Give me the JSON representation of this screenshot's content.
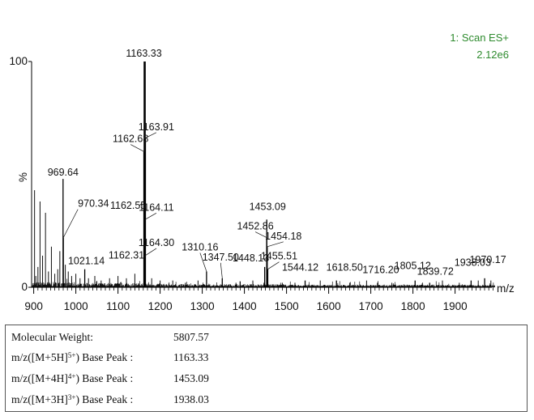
{
  "scan_info": {
    "line1": "1: Scan ES+",
    "line2": "2.12e6"
  },
  "chart_data": {
    "type": "bar",
    "x_unit": "m/z",
    "y_unit": "%",
    "xlim": [
      895,
      2000
    ],
    "ylim": [
      0,
      100
    ],
    "x_ticks": [
      900,
      1000,
      1100,
      1200,
      1300,
      1400,
      1500,
      1600,
      1700,
      1800,
      1900
    ],
    "y_ticks": [
      0,
      100
    ],
    "labeled_peaks": [
      {
        "mz": 969.64,
        "label": "969.64",
        "intensity": 48
      },
      {
        "mz": 970.34,
        "label": "970.34",
        "intensity": 22
      },
      {
        "mz": 1021.14,
        "label": "1021.14",
        "intensity": 8
      },
      {
        "mz": 1162.31,
        "label": "1162.31",
        "intensity": 12
      },
      {
        "mz": 1162.55,
        "label": "1162.55",
        "intensity": 34
      },
      {
        "mz": 1162.68,
        "label": "1162.68",
        "intensity": 60
      },
      {
        "mz": 1163.33,
        "label": "1163.33",
        "intensity": 100
      },
      {
        "mz": 1163.91,
        "label": "1163.91",
        "intensity": 66
      },
      {
        "mz": 1164.11,
        "label": "1164.11",
        "intensity": 30
      },
      {
        "mz": 1164.3,
        "label": "1164.30",
        "intensity": 14
      },
      {
        "mz": 1310.16,
        "label": "1310.16",
        "intensity": 7
      },
      {
        "mz": 1347.5,
        "label": "1347.50",
        "intensity": 4
      },
      {
        "mz": 1448.13,
        "label": "1448.13",
        "intensity": 9
      },
      {
        "mz": 1452.86,
        "label": "1452.86",
        "intensity": 22
      },
      {
        "mz": 1453.09,
        "label": "1453.09",
        "intensity": 30
      },
      {
        "mz": 1454.18,
        "label": "1454.18",
        "intensity": 18
      },
      {
        "mz": 1455.51,
        "label": "1455.51",
        "intensity": 8
      },
      {
        "mz": 1544.12,
        "label": "1544.12",
        "intensity": 3
      },
      {
        "mz": 1618.5,
        "label": "1618.50",
        "intensity": 3
      },
      {
        "mz": 1716.2,
        "label": "1716.20",
        "intensity": 2
      },
      {
        "mz": 1805.12,
        "label": "1805.12",
        "intensity": 3
      },
      {
        "mz": 1839.72,
        "label": "1839.72",
        "intensity": 2
      },
      {
        "mz": 1938.03,
        "label": "1938.03",
        "intensity": 3
      },
      {
        "mz": 1970.17,
        "label": "1970.17",
        "intensity": 4
      }
    ],
    "other_peaks": [
      {
        "mz": 902,
        "intensity": 43
      },
      {
        "mz": 905,
        "intensity": 5
      },
      {
        "mz": 910,
        "intensity": 9
      },
      {
        "mz": 915,
        "intensity": 38
      },
      {
        "mz": 921,
        "intensity": 14
      },
      {
        "mz": 928,
        "intensity": 33
      },
      {
        "mz": 935,
        "intensity": 7
      },
      {
        "mz": 942,
        "intensity": 18
      },
      {
        "mz": 950,
        "intensity": 6
      },
      {
        "mz": 957,
        "intensity": 8
      },
      {
        "mz": 962,
        "intensity": 16
      },
      {
        "mz": 975,
        "intensity": 10
      },
      {
        "mz": 982,
        "intensity": 7
      },
      {
        "mz": 990,
        "intensity": 5
      },
      {
        "mz": 1000,
        "intensity": 6
      },
      {
        "mz": 1010,
        "intensity": 4
      },
      {
        "mz": 1030,
        "intensity": 4
      },
      {
        "mz": 1045,
        "intensity": 5
      },
      {
        "mz": 1060,
        "intensity": 3
      },
      {
        "mz": 1080,
        "intensity": 4
      },
      {
        "mz": 1100,
        "intensity": 5
      },
      {
        "mz": 1120,
        "intensity": 4
      },
      {
        "mz": 1140,
        "intensity": 6
      },
      {
        "mz": 1180,
        "intensity": 4
      },
      {
        "mz": 1200,
        "intensity": 3
      },
      {
        "mz": 1230,
        "intensity": 3
      },
      {
        "mz": 1260,
        "intensity": 2
      },
      {
        "mz": 1290,
        "intensity": 3
      },
      {
        "mz": 1380,
        "intensity": 2
      },
      {
        "mz": 1420,
        "intensity": 3
      },
      {
        "mz": 1490,
        "intensity": 2
      },
      {
        "mz": 1520,
        "intensity": 2
      },
      {
        "mz": 1580,
        "intensity": 3
      },
      {
        "mz": 1650,
        "intensity": 2
      },
      {
        "mz": 1690,
        "intensity": 3
      },
      {
        "mz": 1750,
        "intensity": 2
      },
      {
        "mz": 1870,
        "intensity": 3
      },
      {
        "mz": 1910,
        "intensity": 2
      },
      {
        "mz": 1955,
        "intensity": 3
      },
      {
        "mz": 1985,
        "intensity": 3
      }
    ]
  },
  "results": [
    {
      "label_pre": "Molecular Weight:",
      "label_sup": "",
      "label_post": "",
      "value": "5807.57"
    },
    {
      "label_pre": "m/z([M+5H]",
      "label_sup": "5+",
      "label_post": ") Base Peak :",
      "value": "1163.33"
    },
    {
      "label_pre": "m/z([M+4H]",
      "label_sup": "4+",
      "label_post": ") Base Peak :",
      "value": "1453.09"
    },
    {
      "label_pre": "m/z([M+3H]",
      "label_sup": "3+",
      "label_post": ") Base Peak :",
      "value": "1938.03"
    }
  ]
}
